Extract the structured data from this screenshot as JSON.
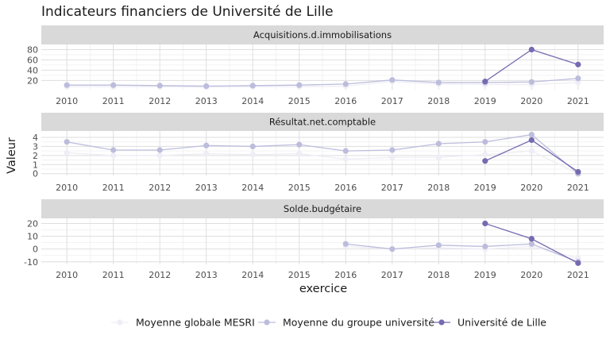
{
  "chart_data": {
    "type": "line",
    "title": "Indicateurs financiers de Université de Lille",
    "xlabel": "exercice",
    "ylabel": "Valeur",
    "x": [
      "2010",
      "2011",
      "2012",
      "2013",
      "2014",
      "2015",
      "2016",
      "2017",
      "2018",
      "2019",
      "2020",
      "2021"
    ],
    "legend_position": "bottom",
    "legend": [
      {
        "name": "Moyenne globale MESRI",
        "color": "#efedf5"
      },
      {
        "name": "Moyenne du groupe université",
        "color": "#bcbddc"
      },
      {
        "name": "Université de Lille",
        "color": "#756bb1"
      }
    ],
    "panels": [
      {
        "strip": "Acquisitions.d.immobilisations",
        "ylim": [
          2,
          90
        ],
        "yticks": [
          20,
          40,
          60,
          80
        ],
        "series": [
          {
            "name": "Moyenne globale MESRI",
            "values": [
              8,
              8,
              8,
              7,
              8,
              8,
              9,
              18,
              13,
              12,
              12,
              16
            ]
          },
          {
            "name": "Moyenne du groupe université",
            "values": [
              11,
              11,
              10,
              9,
              10,
              11,
              13,
              21,
              16,
              16,
              17,
              24
            ]
          },
          {
            "name": "Université de Lille",
            "values": [
              null,
              null,
              null,
              null,
              null,
              null,
              null,
              null,
              null,
              18,
              80,
              51
            ]
          }
        ]
      },
      {
        "strip": "Résultat.net.comptable",
        "ylim": [
          -0.2,
          4.7
        ],
        "yticks": [
          0,
          1,
          2,
          3,
          4
        ],
        "series": [
          {
            "name": "Moyenne globale MESRI",
            "values": [
              2.3,
              2.0,
              2.0,
              2.2,
              2.1,
              2.2,
              1.6,
              1.8,
              1.8,
              2.1,
              2.5,
              0.0
            ]
          },
          {
            "name": "Moyenne du groupe université",
            "values": [
              3.5,
              2.6,
              2.6,
              3.1,
              3.0,
              3.2,
              2.5,
              2.6,
              3.3,
              3.5,
              4.3,
              0.0
            ]
          },
          {
            "name": "Université de Lille",
            "values": [
              null,
              null,
              null,
              null,
              null,
              null,
              null,
              null,
              null,
              1.4,
              3.7,
              0.2
            ]
          }
        ]
      },
      {
        "strip": "Solde.budgétaire",
        "ylim": [
          -12,
          24
        ],
        "yticks": [
          -10,
          0,
          10,
          20
        ],
        "series": [
          {
            "name": "Moyenne globale MESRI",
            "values": [
              null,
              null,
              null,
              null,
              null,
              null,
              2,
              0,
              1,
              0,
              2,
              -7
            ]
          },
          {
            "name": "Moyenne du groupe université",
            "values": [
              null,
              null,
              null,
              null,
              null,
              null,
              4,
              0,
              3,
              2,
              4,
              -10
            ]
          },
          {
            "name": "Université de Lille",
            "values": [
              null,
              null,
              null,
              null,
              null,
              null,
              null,
              null,
              null,
              20,
              8,
              -11
            ]
          }
        ]
      }
    ]
  }
}
